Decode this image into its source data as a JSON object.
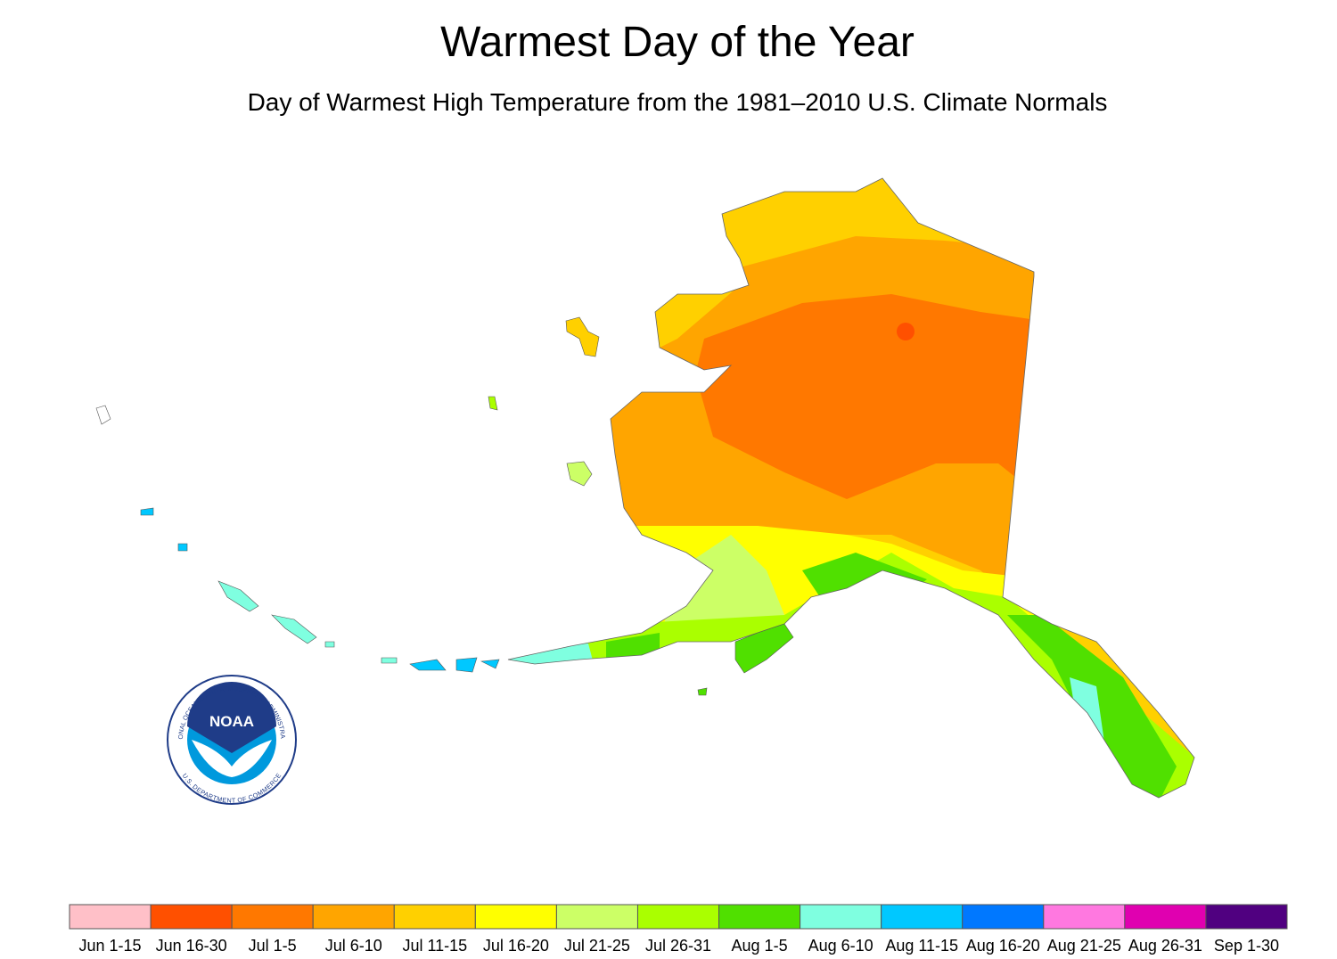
{
  "header": {
    "title": "Warmest Day of the Year",
    "subtitle": "Day of Warmest High Temperature from the 1981–2010 U.S. Climate Normals"
  },
  "logo": {
    "label": "NOAA",
    "ring_top": "NATIONAL OCEANIC AND ATMOSPHERIC ADMINISTRATION",
    "ring_bottom": "U.S. DEPARTMENT OF COMMERCE"
  },
  "legend": [
    {
      "label": "Jun 1-15",
      "color": "#ffc0c8"
    },
    {
      "label": "Jun 16-30",
      "color": "#ff5000"
    },
    {
      "label": "Jul 1-5",
      "color": "#ff7800"
    },
    {
      "label": "Jul 6-10",
      "color": "#ffa500"
    },
    {
      "label": "Jul 11-15",
      "color": "#ffd000"
    },
    {
      "label": "Jul 16-20",
      "color": "#ffff00"
    },
    {
      "label": "Jul 21-25",
      "color": "#ccff66"
    },
    {
      "label": "Jul 26-31",
      "color": "#aaff00"
    },
    {
      "label": "Aug 1-5",
      "color": "#50e000"
    },
    {
      "label": "Aug 6-10",
      "color": "#7fffe0"
    },
    {
      "label": "Aug 11-15",
      "color": "#00c8ff"
    },
    {
      "label": "Aug 16-20",
      "color": "#0078ff"
    },
    {
      "label": "Aug 21-25",
      "color": "#ff78e0"
    },
    {
      "label": "Aug 26-31",
      "color": "#e000b0"
    },
    {
      "label": "Sep 1-30",
      "color": "#500080"
    }
  ]
}
